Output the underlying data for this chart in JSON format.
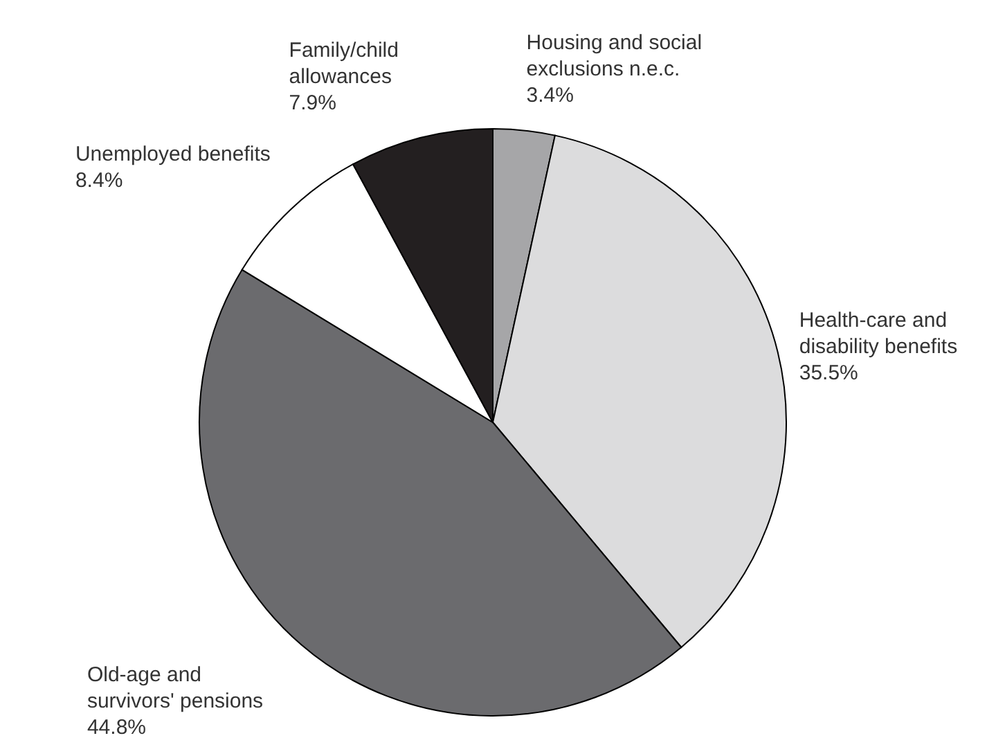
{
  "chart_data": {
    "type": "pie",
    "categories": [
      "Housing and social exclusions n.e.c.",
      "Health-care and disability benefits",
      "Old-age and survivors' pensions",
      "Unemployed benefits",
      "Family/child allowances"
    ],
    "values": [
      3.4,
      35.5,
      44.8,
      8.4,
      7.9
    ],
    "value_labels": [
      "3.4%",
      "35.5%",
      "44.8%",
      "8.4%",
      "7.9%"
    ],
    "colors": [
      "#a6a6a8",
      "#dcdcdd",
      "#6b6b6e",
      "#ffffff",
      "#231f20"
    ]
  }
}
